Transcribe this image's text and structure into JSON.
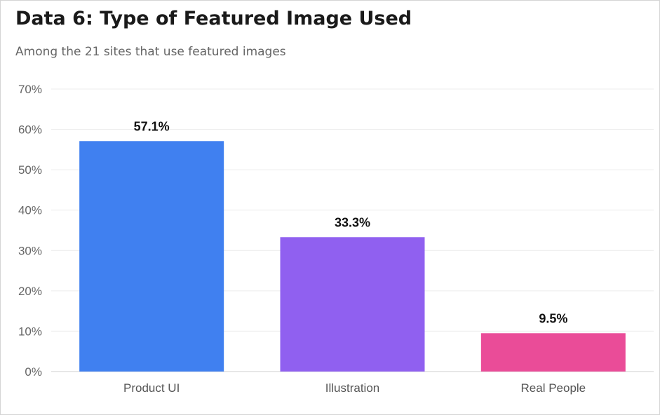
{
  "chart_data": {
    "type": "bar",
    "title": "Data 6: Type of Featured Image Used",
    "subtitle": "Among the 21 sites that use featured images",
    "categories": [
      "Product UI",
      "Illustration",
      "Real People"
    ],
    "values": [
      57.1,
      33.3,
      9.5
    ],
    "value_labels": [
      "57.1%",
      "33.3%",
      "9.5%"
    ],
    "colors": [
      "#4080f0",
      "#9060f0",
      "#ea4c98"
    ],
    "ylim": [
      0,
      70
    ],
    "yticks": [
      0,
      10,
      20,
      30,
      40,
      50,
      60,
      70
    ],
    "ytick_labels": [
      "0%",
      "10%",
      "20%",
      "30%",
      "40%",
      "50%",
      "60%",
      "70%"
    ],
    "xlabel": "",
    "ylabel": "",
    "grid": true,
    "legend": false
  }
}
